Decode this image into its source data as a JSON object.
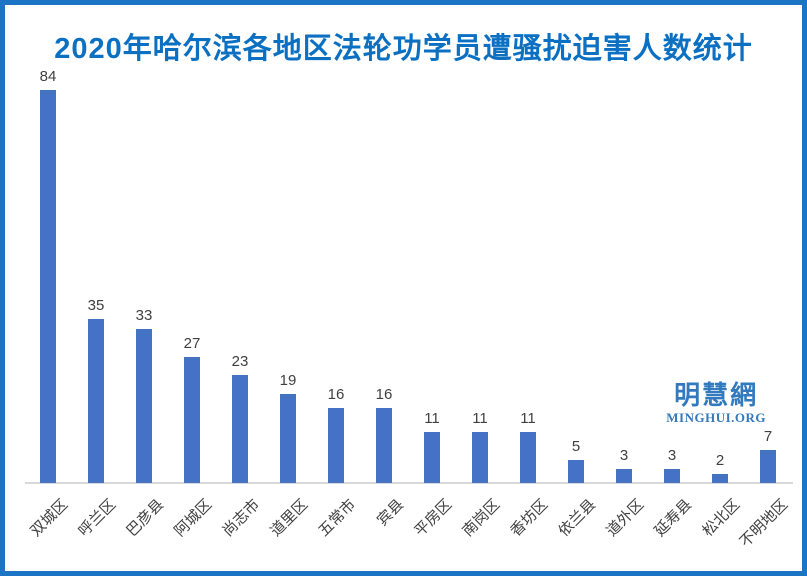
{
  "frame": {
    "border_color": "#1b74c4",
    "background": "#ffffff"
  },
  "title": {
    "text": "2020年哈尔滨各地区法轮功学员遭骚扰迫害人数统计",
    "color": "#0c70c2"
  },
  "watermark": {
    "cn": "明慧網",
    "en": "MINGHUI.ORG",
    "color": "#3279be"
  },
  "chart_data": {
    "type": "bar",
    "title": "2020年哈尔滨各地区法轮功学员遭骚扰迫害人数统计",
    "categories": [
      "双城区",
      "呼兰区",
      "巴彦县",
      "阿城区",
      "尚志市",
      "道里区",
      "五常市",
      "宾县",
      "平房区",
      "南岗区",
      "香坊区",
      "依兰县",
      "道外区",
      "延寿县",
      "松北区",
      "不明地区"
    ],
    "values": [
      84,
      35,
      33,
      27,
      23,
      19,
      16,
      16,
      11,
      11,
      11,
      5,
      3,
      3,
      2,
      7
    ],
    "xlabel": "",
    "ylabel": "",
    "ylim": [
      0,
      90
    ],
    "grid": false,
    "legend": false,
    "value_labels": true,
    "x_tick_rotation": 45,
    "bar_color": "#4472c4",
    "axis_line_color": "#d9d9d9",
    "label_color": "#404040"
  }
}
